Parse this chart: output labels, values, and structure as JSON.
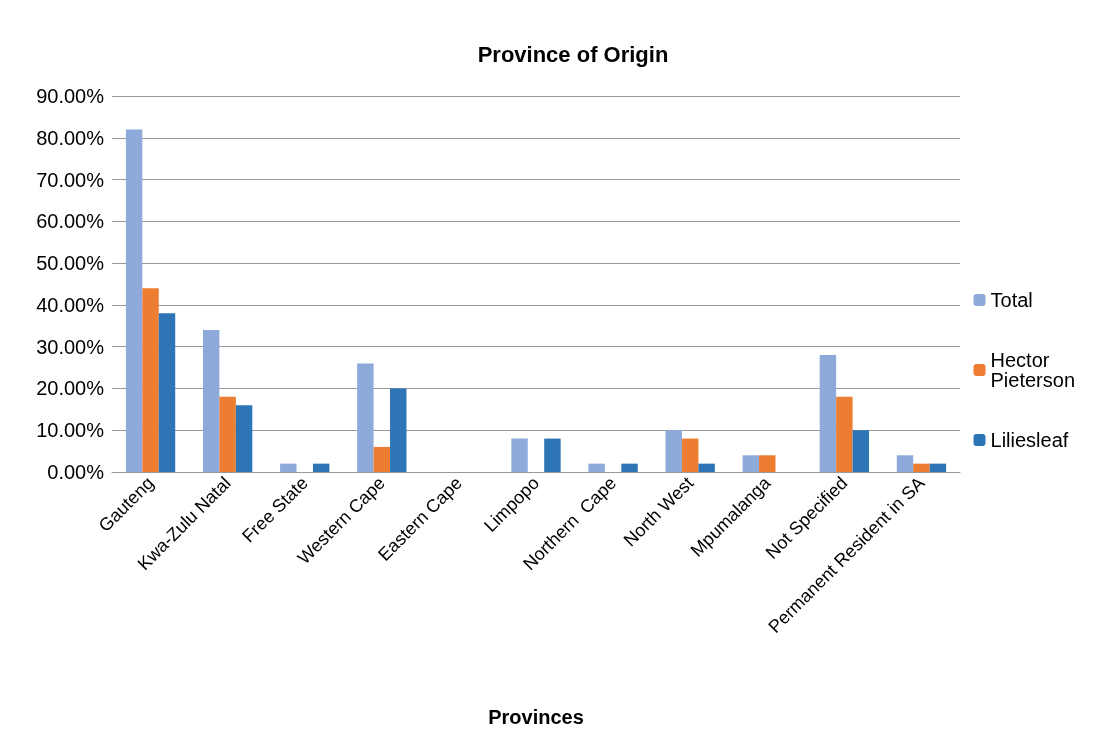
{
  "chart_data": {
    "type": "bar",
    "title": "Province of Origin",
    "xlabel": "Provinces",
    "categories": [
      "Gauteng",
      "Kwa-Zulu Natal",
      "Free State",
      "Western Cape",
      "Eastern Cape",
      "Limpopo",
      "Northern  Cape",
      "North West",
      "Mpumalanga",
      "Not Specified",
      "Permanent Resident in SA"
    ],
    "series": [
      {
        "name": "Total",
        "color": "#8eaadb",
        "values": [
          82,
          34,
          2,
          26,
          0,
          8,
          2,
          10,
          4,
          28,
          4
        ]
      },
      {
        "name": "Hector Pieterson",
        "color": "#ed7d31",
        "values": [
          44,
          18,
          0,
          6,
          0,
          0,
          0,
          8,
          4,
          18,
          2
        ]
      },
      {
        "name": "Liliesleaf",
        "color": "#2e75b6",
        "values": [
          38,
          16,
          2,
          20,
          0,
          8,
          2,
          2,
          0,
          10,
          2
        ]
      }
    ],
    "ylim": [
      0,
      90
    ],
    "yticks": [
      {
        "value": 0,
        "label": "0.00%"
      },
      {
        "value": 10,
        "label": "10.00%"
      },
      {
        "value": 20,
        "label": "20.00%"
      },
      {
        "value": 30,
        "label": "30.00%"
      },
      {
        "value": 40,
        "label": "40.00%"
      },
      {
        "value": 50,
        "label": "50.00%"
      },
      {
        "value": 60,
        "label": "60.00%"
      },
      {
        "value": 70,
        "label": "70.00%"
      },
      {
        "value": 80,
        "label": "80.00%"
      },
      {
        "value": 90,
        "label": "90.00%"
      }
    ],
    "grid": "y",
    "legend": "right"
  }
}
